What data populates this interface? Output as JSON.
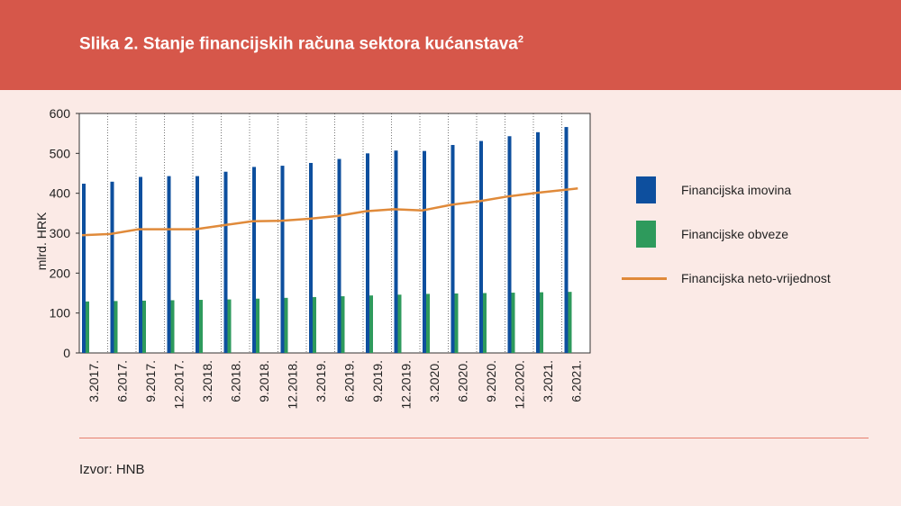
{
  "header": {
    "title": "Slika 2. Stanje financijskih računa sektora kućanstava",
    "footnote": "2"
  },
  "colors": {
    "header_bg": "#d6574a",
    "background": "#fbeae6",
    "assets": "#0d4f9e",
    "liabilities": "#2e9a5c",
    "net": "#e08a3a"
  },
  "chart_data": {
    "type": "bar",
    "title": "Slika 2. Stanje financijskih računa sektora kućanstava",
    "ylabel": "mlrd. HRK",
    "xlabel": "",
    "ylim": [
      0,
      600
    ],
    "yticks": [
      0,
      100,
      200,
      300,
      400,
      500,
      600
    ],
    "grid": true,
    "legend_position": "right",
    "categories": [
      "3.2017.",
      "6.2017.",
      "9.2017.",
      "12.2017.",
      "3.2018.",
      "6.2018.",
      "9.2018.",
      "12.2018.",
      "3.2019.",
      "6.2019.",
      "9.2019.",
      "12.2019.",
      "3.2020.",
      "6.2020.",
      "9.2020.",
      "12.2020.",
      "3.2021.",
      "6.2021."
    ],
    "series": [
      {
        "name": "Financijska imovina",
        "type": "bar",
        "color": "#0d4f9e",
        "values": [
          424,
          429,
          441,
          443,
          443,
          454,
          466,
          469,
          476,
          486,
          500,
          507,
          506,
          521,
          531,
          543,
          553,
          566
        ]
      },
      {
        "name": "Financijske obveze",
        "type": "bar",
        "color": "#2e9a5c",
        "values": [
          129,
          130,
          131,
          132,
          133,
          134,
          136,
          138,
          140,
          142,
          144,
          146,
          148,
          149,
          150,
          151,
          152,
          153
        ]
      },
      {
        "name": "Financijska neto-vrijednost",
        "type": "line",
        "color": "#e08a3a",
        "values": [
          295,
          298,
          310,
          310,
          310,
          320,
          330,
          331,
          336,
          343,
          355,
          360,
          357,
          371,
          380,
          392,
          401,
          412
        ]
      }
    ]
  },
  "source": "Izvor: HNB"
}
